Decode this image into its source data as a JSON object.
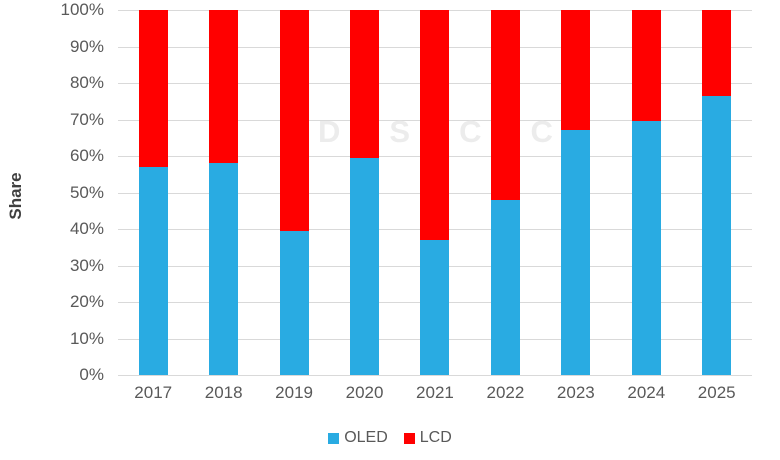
{
  "chart_data": {
    "type": "bar",
    "stacked": true,
    "title": "",
    "xlabel": "",
    "ylabel": "Share",
    "ylim": [
      0,
      100
    ],
    "y_ticks": [
      "0%",
      "10%",
      "20%",
      "30%",
      "40%",
      "50%",
      "60%",
      "70%",
      "80%",
      "90%",
      "100%"
    ],
    "grid": "horizontal",
    "legend_position": "bottom-center",
    "categories": [
      "2017",
      "2018",
      "2019",
      "2020",
      "2021",
      "2022",
      "2023",
      "2024",
      "2025"
    ],
    "series": [
      {
        "name": "OLED",
        "color": "#29ABE2",
        "values": [
          57,
          58,
          39.5,
          59.5,
          37,
          48,
          67,
          69.5,
          76.5
        ]
      },
      {
        "name": "LCD",
        "color": "#FF0000",
        "values": [
          43,
          42,
          60.5,
          40.5,
          63,
          52,
          33,
          30.5,
          23.5
        ]
      }
    ]
  },
  "watermark": {
    "text": "DSCC",
    "color": "#ECECEC"
  },
  "style_colors": {
    "background": "#FFFFFF",
    "gridline": "#D9D9D9",
    "tick_text": "#595959",
    "axis_title_text": "#3F3F3F"
  }
}
